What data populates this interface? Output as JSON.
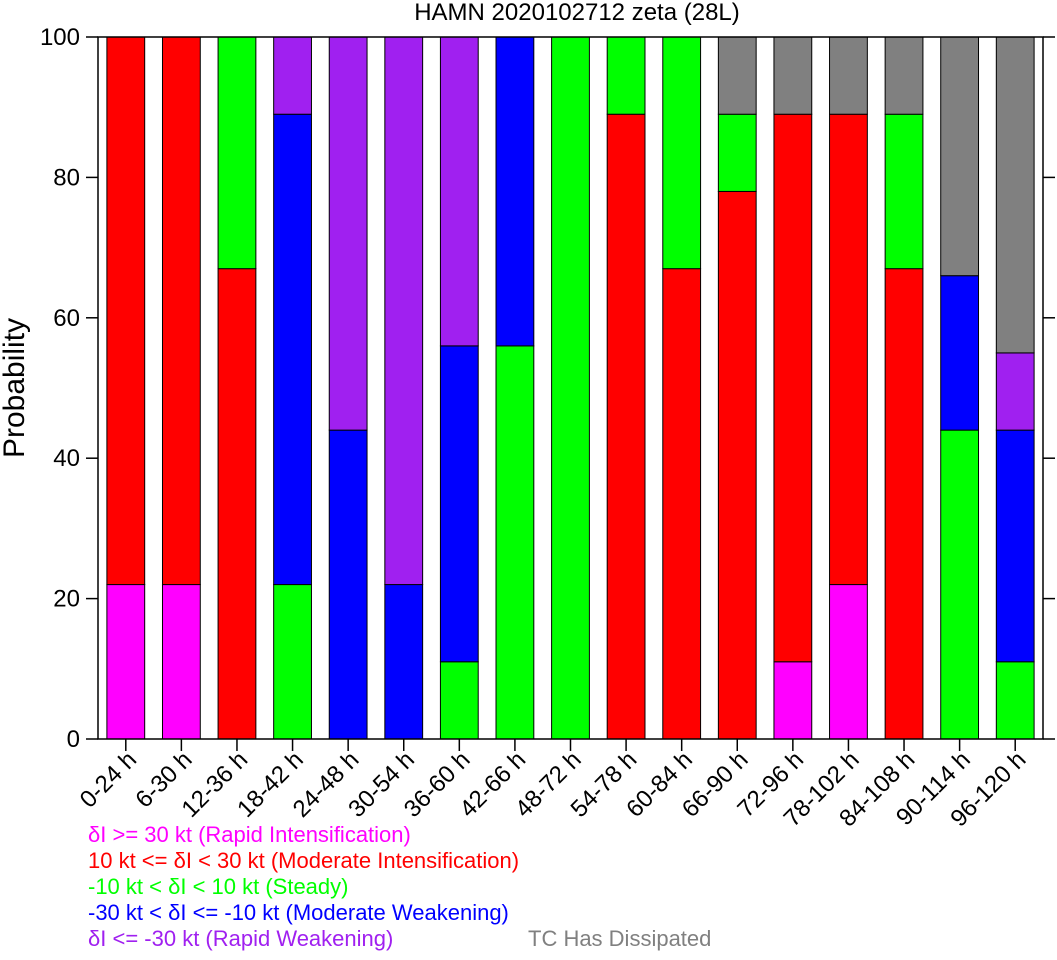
{
  "chart_data": {
    "type": "bar",
    "stacked": true,
    "title": "HAMN 2020102712 zeta (28L)",
    "xlabel": "",
    "ylabel": "Probability",
    "ylim": [
      0,
      100
    ],
    "yticks": [
      0,
      20,
      40,
      60,
      80,
      100
    ],
    "grid": false,
    "categories": [
      "0-24 h",
      "6-30 h",
      "12-36 h",
      "18-42 h",
      "24-48 h",
      "30-54 h",
      "36-60 h",
      "42-66 h",
      "48-72 h",
      "54-78 h",
      "60-84 h",
      "66-90 h",
      "72-96 h",
      "78-102 h",
      "84-108 h",
      "90-114 h",
      "96-120 h"
    ],
    "series": [
      {
        "name": "δI >= 30 kt (Rapid Intensification)",
        "color": "#ff00ff",
        "values": [
          22,
          22,
          0,
          0,
          0,
          0,
          0,
          0,
          0,
          0,
          0,
          0,
          11,
          22,
          0,
          0,
          0
        ]
      },
      {
        "name": "10 kt <= δI < 30 kt (Moderate Intensification)",
        "color": "#ff0000",
        "values": [
          78,
          78,
          67,
          0,
          0,
          0,
          0,
          0,
          0,
          89,
          67,
          78,
          78,
          67,
          67,
          0,
          0
        ]
      },
      {
        "name": "-10 kt < δI < 10 kt (Steady)",
        "color": "#00ff00",
        "values": [
          0,
          0,
          33,
          22,
          0,
          0,
          11,
          56,
          100,
          11,
          33,
          11,
          0,
          0,
          22,
          44,
          11
        ]
      },
      {
        "name": "-30 kt < δI <= -10 kt (Moderate Weakening)",
        "color": "#0000ff",
        "values": [
          0,
          0,
          0,
          67,
          44,
          22,
          45,
          44,
          0,
          0,
          0,
          0,
          0,
          0,
          0,
          22,
          33
        ]
      },
      {
        "name": "δI <= -30 kt (Rapid Weakening)",
        "color": "#a020f0",
        "values": [
          0,
          0,
          0,
          11,
          56,
          78,
          44,
          0,
          0,
          0,
          0,
          0,
          0,
          0,
          0,
          0,
          11
        ]
      },
      {
        "name": "TC Has Dissipated",
        "color": "#808080",
        "values": [
          0,
          0,
          0,
          0,
          0,
          0,
          0,
          0,
          0,
          0,
          0,
          11,
          11,
          11,
          11,
          34,
          45
        ]
      }
    ],
    "legend": [
      {
        "text": "δI >= 30 kt (Rapid Intensification)",
        "color": "#ff00ff"
      },
      {
        "text": "10 kt <= δI < 30 kt (Moderate Intensification)",
        "color": "#ff0000"
      },
      {
        "text": "-10 kt < δI < 10 kt (Steady)",
        "color": "#00ff00"
      },
      {
        "text": "-30 kt < δI <= -10 kt (Moderate Weakening)",
        "color": "#0000ff"
      },
      {
        "text": "δI <= -30 kt (Rapid Weakening)",
        "color": "#a020f0"
      },
      {
        "text": "TC Has Dissipated",
        "color": "#808080"
      }
    ],
    "legend_position": "bottom-left"
  }
}
